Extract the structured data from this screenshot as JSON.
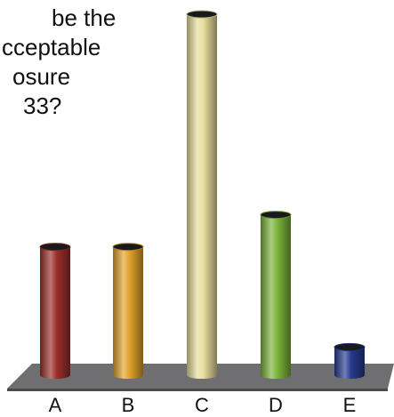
{
  "question": {
    "lines": [
      {
        "text": "be the",
        "indent": 58
      },
      {
        "text": "cceptable",
        "indent": 2
      },
      {
        "text": "osure",
        "indent": 14
      },
      {
        "text": "33?",
        "indent": 26
      }
    ]
  },
  "chart_data": {
    "type": "bar",
    "categories": [
      "A",
      "B",
      "C",
      "D",
      "E"
    ],
    "values": [
      16,
      16,
      45,
      20,
      3.5
    ],
    "title": "",
    "xlabel": "",
    "ylabel": "",
    "ylim": [
      0,
      46
    ],
    "grid": false,
    "legend": "none",
    "colors": [
      "#9b2f2a",
      "#e1a32a",
      "#e7dd9c",
      "#7cb43a",
      "#273a8f"
    ]
  }
}
